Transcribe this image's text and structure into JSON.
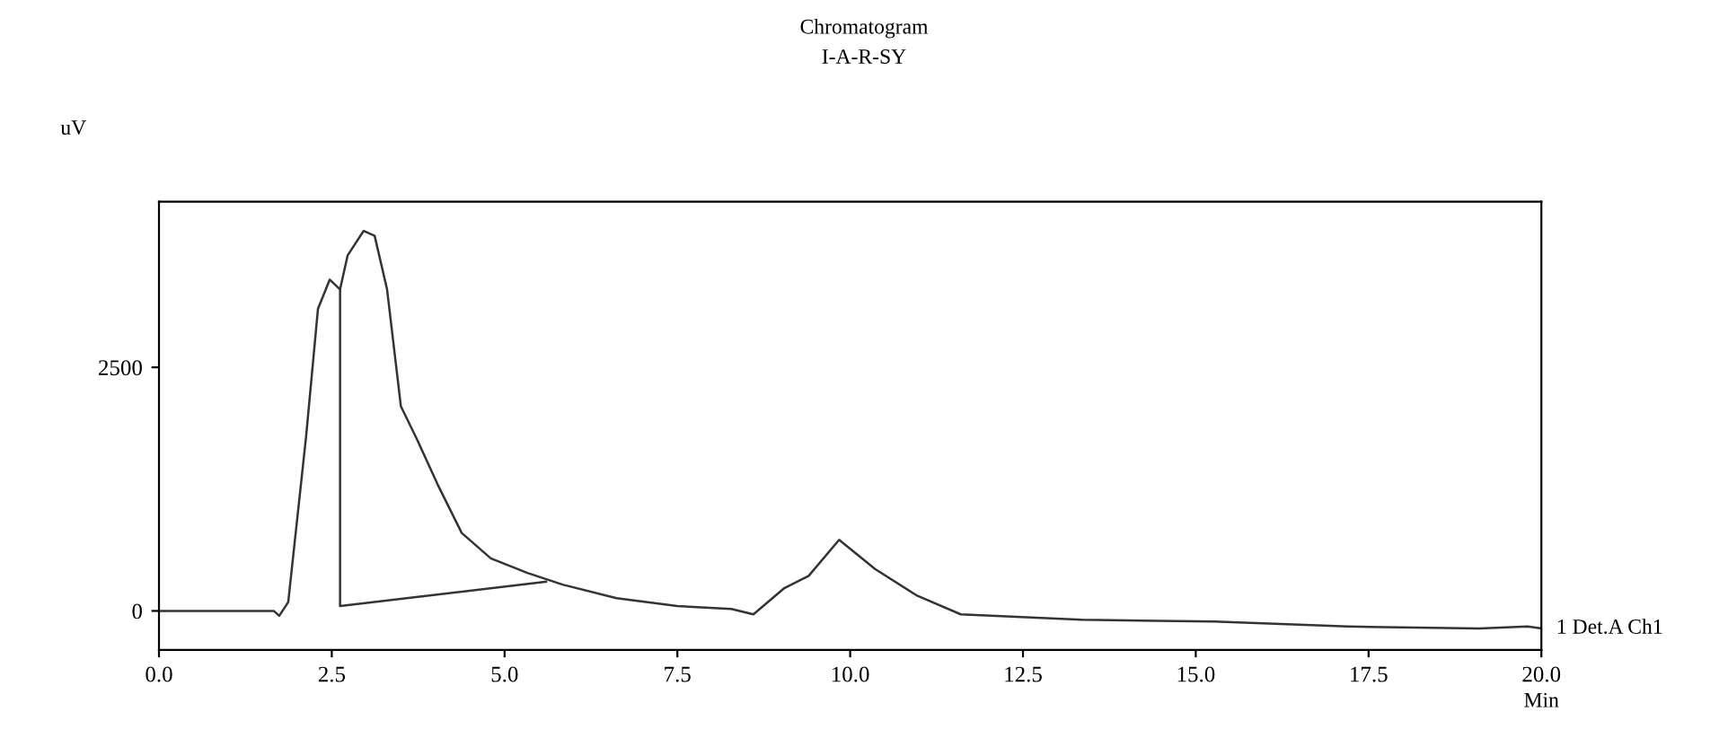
{
  "chart_data": {
    "type": "line",
    "title": "Chromatogram",
    "subtitle": "I-A-R-SY",
    "xlabel": "Min",
    "ylabel": "uV",
    "xlim": [
      0,
      20
    ],
    "ylim": [
      -400,
      4200
    ],
    "xticks": [
      {
        "value": 0,
        "label": "0.0"
      },
      2.5,
      {
        "value": 5,
        "label": "5.0"
      },
      7.5,
      {
        "value": 10,
        "label": "10.0"
      },
      12.5,
      {
        "value": 15,
        "label": "15.0"
      },
      17.5,
      {
        "value": 20,
        "label": "20.0"
      }
    ],
    "yticks": [
      0,
      2500
    ],
    "grid": false,
    "legend": false,
    "marker": "none",
    "line_style": "solid",
    "series": [
      {
        "color": "#333333",
        "x": [
          0,
          1.66,
          1.74,
          1.87,
          2.13,
          2.3,
          2.47,
          2.62,
          2.73,
          2.96,
          3.12,
          3.3,
          3.5,
          3.74,
          4.03,
          4.38,
          4.8,
          5.33,
          5.84,
          6.62,
          7.5,
          8.28,
          8.6,
          9.04,
          9.4,
          9.84,
          10.36,
          10.96,
          11.6,
          13.35,
          15.27,
          17.2,
          19.1,
          19.8,
          20
        ],
        "values": [
          0,
          0,
          -50,
          90,
          1800,
          3100,
          3400,
          3300,
          3650,
          3900,
          3850,
          3300,
          2100,
          1750,
          1300,
          800,
          540,
          390,
          270,
          130,
          50,
          20,
          -35,
          230,
          360,
          730,
          430,
          160,
          -35,
          -90,
          -110,
          -160,
          -180,
          -160,
          -180
        ]
      },
      {
        "color": "#333333",
        "x": [
          2.62,
          2.62,
          5.6
        ],
        "values": [
          3300,
          50,
          300
        ]
      }
    ],
    "annotations": [
      {
        "text": "1 Det.A Ch1",
        "x": 20,
        "y": -180
      }
    ]
  }
}
